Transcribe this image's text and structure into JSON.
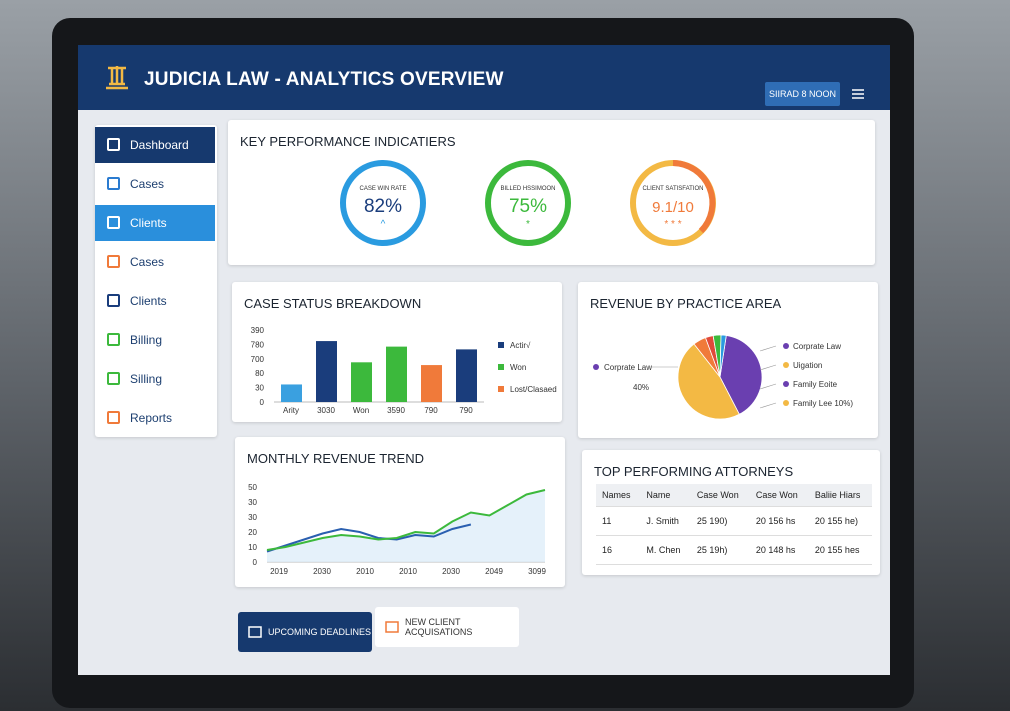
{
  "header": {
    "title": "JUDICIA LAW - ANALYTICS OVERVIEW",
    "button": "SIIRAD 8 NOON"
  },
  "sidebar": {
    "items": [
      {
        "label": "Dashboard",
        "state": "selected",
        "icon": "#1a3d7c"
      },
      {
        "label": "Cases",
        "state": "normal",
        "icon": "#2a7bd0"
      },
      {
        "label": "Clients",
        "state": "highlight",
        "icon": "#ffffff"
      },
      {
        "label": "Cases",
        "state": "normal",
        "icon": "#f07a3a"
      },
      {
        "label": "Clients",
        "state": "normal",
        "icon": "#1a3d7c"
      },
      {
        "label": "Billing",
        "state": "normal",
        "icon": "#3cb93c"
      },
      {
        "label": "Silling",
        "state": "normal",
        "icon": "#3cb93c"
      },
      {
        "label": "Reports",
        "state": "normal",
        "icon": "#f07a3a"
      }
    ]
  },
  "kpi": {
    "title": "KEY PERFORMANCE INDICATIERS",
    "gauges": [
      {
        "label": "CASE WIN RATE",
        "value": "82%",
        "color": "#2a9be0",
        "symbol": "^"
      },
      {
        "label": "BILLED HSSIMOON",
        "value": "75%",
        "color": "#3cb93c",
        "symbol": "*"
      },
      {
        "label": "CLIENT SATISFATION",
        "value": "9.1/10",
        "color": "#f07a3a",
        "symbol": "* * *"
      }
    ]
  },
  "case_status": {
    "title": "CASE STATUS BREAKDOWN",
    "y_labels": [
      "390",
      "780",
      "700",
      "80",
      "30",
      "0"
    ],
    "ylim": [
      0,
      390
    ],
    "x_labels": [
      "Arity",
      "3030",
      "Won",
      "3590",
      "790",
      "790"
    ],
    "values": [
      95,
      330,
      215,
      300,
      200,
      285
    ],
    "colors": [
      "#3aa0e0",
      "#1a3d7c",
      "#3cb93c",
      "#3cb93c",
      "#f07a3a",
      "#1a3d7c"
    ],
    "legend": [
      {
        "name": "Actir√",
        "color": "#1a3d7c"
      },
      {
        "name": "Won",
        "color": "#3cb93c"
      },
      {
        "name": "Lost/Clasaed",
        "color": "#f07a3a"
      }
    ]
  },
  "revenue": {
    "title": "REVENUE BY PRACTICE AREA",
    "callout": {
      "name": "Corprate Law",
      "value": "40%"
    },
    "slices": [
      {
        "value": 40,
        "color": "#6a3fb0"
      },
      {
        "value": 47,
        "color": "#f3b944"
      },
      {
        "value": 5,
        "color": "#f07a3a"
      },
      {
        "value": 3,
        "color": "#e04a3a"
      },
      {
        "value": 3,
        "color": "#3cb93c"
      },
      {
        "value": 2,
        "color": "#2a9be0"
      }
    ],
    "legend": [
      {
        "name": "Corprate Law",
        "color": "#6a3fb0"
      },
      {
        "name": "Uigation",
        "color": "#f3b944"
      },
      {
        "name": "Family Eoite",
        "color": "#6a3fb0"
      },
      {
        "name": "Family Lee 10%)",
        "color": "#f3b944"
      }
    ]
  },
  "trend": {
    "title": "MONTHLY REVENUE TREND",
    "y_labels": [
      "50",
      "30",
      "30",
      "20",
      "10",
      "0"
    ],
    "ylim": [
      0,
      50
    ],
    "x_labels": [
      "2019",
      "2030",
      "2010",
      "2010",
      "2030",
      "2049",
      "3099"
    ],
    "series": [
      {
        "color": "#2a5fb0",
        "values": [
          7,
          11,
          15,
          19,
          22,
          20,
          16,
          15,
          18,
          17,
          22,
          25,
          null,
          null,
          null,
          null
        ]
      },
      {
        "color": "#3cb93c",
        "values": [
          8,
          10,
          13,
          16,
          18,
          17,
          15,
          16,
          20,
          19,
          27,
          33,
          31,
          38,
          45,
          48
        ]
      }
    ]
  },
  "attorneys": {
    "title": "TOP PERFORMING ATTORNEYS",
    "headers": [
      "Names",
      "Name",
      "Case Won",
      "Case Won",
      "Baliie Hiars"
    ],
    "rows": [
      [
        "11",
        "J. Smith",
        "25 190)",
        "20 156 hs",
        "20 155 he)"
      ],
      [
        "16",
        "M. Chen",
        "25 19h)",
        "20 148 hs",
        "20 155 hes"
      ]
    ]
  },
  "footer": {
    "buttons": [
      "UPCOMING DEADLINES",
      "NEW CLIENT ACQUISATIONS"
    ]
  }
}
